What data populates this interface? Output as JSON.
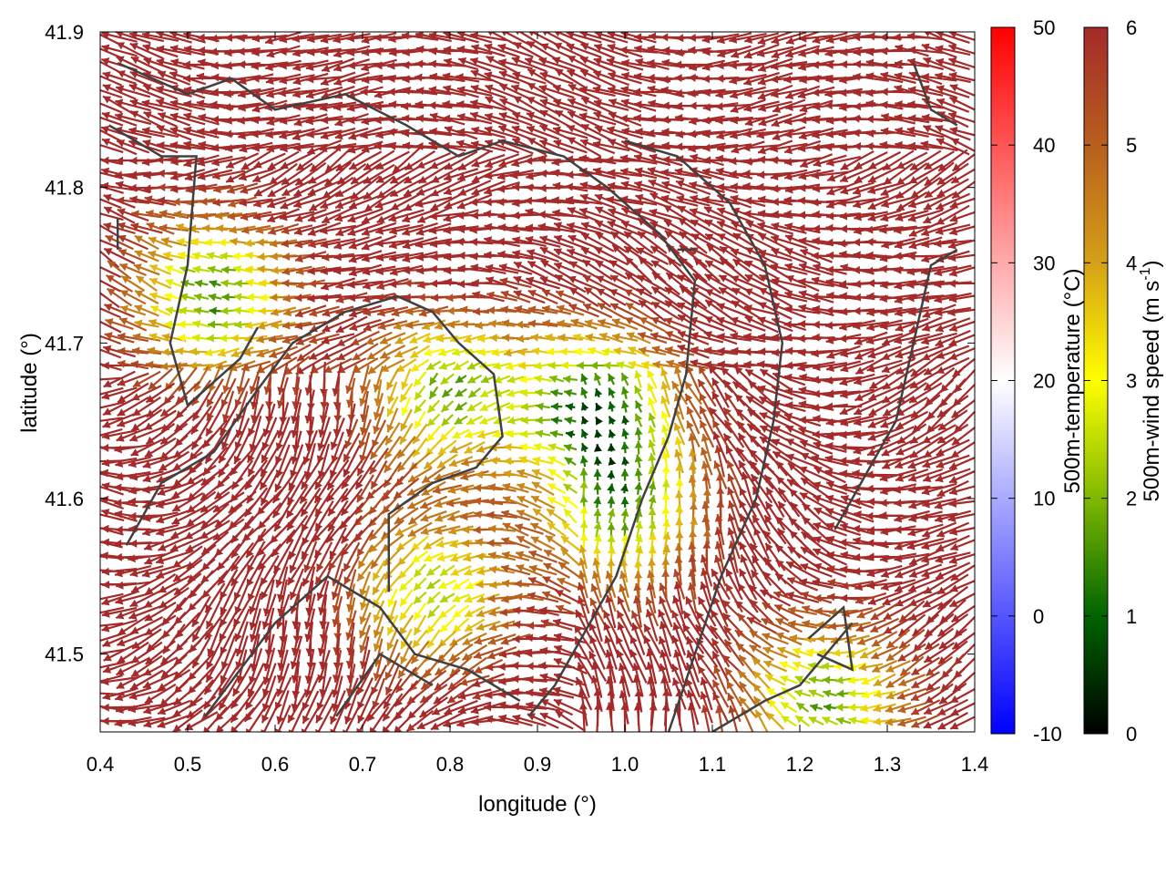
{
  "chart_data": {
    "type": "vector-field",
    "xlabel": "longitude (°)",
    "ylabel": "latitude (°)",
    "xlim": [
      0.4,
      1.4
    ],
    "ylim": [
      41.45,
      41.9
    ],
    "xticks": [
      "0.4",
      "0.5",
      "0.6",
      "0.7",
      "0.8",
      "0.9",
      "1.0",
      "1.1",
      "1.2",
      "1.3",
      "1.4"
    ],
    "yticks": [
      "41.5",
      "41.6",
      "41.7",
      "41.8",
      "41.9"
    ],
    "temperature_colorbar": {
      "label": "500m-temperature (°C)",
      "range": [
        -10,
        50
      ],
      "ticks": [
        "-10",
        "0",
        "10",
        "20",
        "30",
        "40",
        "50"
      ],
      "colors": [
        "#0000ff",
        "#ffffff",
        "#ff0000"
      ]
    },
    "wind_colorbar": {
      "label_main": "500m-wind speed (m s",
      "label_sup": "-1",
      "label_end": ")",
      "range": [
        0,
        6
      ],
      "ticks": [
        "0",
        "1",
        "2",
        "3",
        "4",
        "5",
        "6"
      ],
      "colors": [
        "#000000",
        "#006400",
        "#7fb800",
        "#ffff00",
        "#d4a017",
        "#b85f1e",
        "#a52a2a"
      ]
    },
    "vector_color_high": "#a52a2a",
    "coastline_color": "#404040",
    "low_wind_zones": [
      {
        "lon": 0.53,
        "lat": 41.73,
        "speed": 1.5
      },
      {
        "lon": 0.8,
        "lat": 41.67,
        "speed": 2.0
      },
      {
        "lon": 0.97,
        "lat": 41.66,
        "speed": 1.2
      },
      {
        "lon": 0.78,
        "lat": 41.54,
        "speed": 2.5
      },
      {
        "lon": 1.23,
        "lat": 41.47,
        "speed": 1.8
      },
      {
        "lon": 1.0,
        "lat": 41.59,
        "speed": 2.2
      }
    ],
    "coastlines": [
      [
        [
          0.42,
          41.88
        ],
        [
          0.5,
          41.86
        ],
        [
          0.55,
          41.87
        ],
        [
          0.6,
          41.85
        ],
        [
          0.68,
          41.86
        ],
        [
          0.75,
          41.84
        ],
        [
          0.81,
          41.82
        ],
        [
          0.86,
          41.83
        ],
        [
          0.93,
          41.82
        ],
        [
          0.98,
          41.8
        ]
      ],
      [
        [
          0.41,
          41.84
        ],
        [
          0.47,
          41.82
        ],
        [
          0.51,
          41.82
        ],
        [
          0.5,
          41.75
        ],
        [
          0.48,
          41.7
        ],
        [
          0.5,
          41.66
        ],
        [
          0.56,
          41.69
        ],
        [
          0.58,
          41.71
        ]
      ],
      [
        [
          0.43,
          41.57
        ],
        [
          0.47,
          41.61
        ],
        [
          0.53,
          41.63
        ],
        [
          0.58,
          41.67
        ],
        [
          0.62,
          41.7
        ],
        [
          0.68,
          41.72
        ],
        [
          0.74,
          41.73
        ],
        [
          0.78,
          41.72
        ],
        [
          0.81,
          41.7
        ],
        [
          0.85,
          41.68
        ],
        [
          0.86,
          41.64
        ],
        [
          0.83,
          41.62
        ],
        [
          0.78,
          41.61
        ],
        [
          0.73,
          41.59
        ],
        [
          0.73,
          41.54
        ]
      ],
      [
        [
          0.98,
          41.8
        ],
        [
          1.04,
          41.77
        ],
        [
          1.08,
          41.74
        ],
        [
          1.07,
          41.68
        ],
        [
          1.05,
          41.64
        ],
        [
          1.02,
          41.6
        ],
        [
          0.99,
          41.55
        ],
        [
          0.95,
          41.51
        ],
        [
          0.92,
          41.48
        ],
        [
          0.89,
          41.46
        ]
      ],
      [
        [
          0.52,
          41.46
        ],
        [
          0.56,
          41.49
        ],
        [
          0.6,
          41.52
        ],
        [
          0.66,
          41.55
        ],
        [
          0.72,
          41.53
        ],
        [
          0.76,
          41.5
        ],
        [
          0.82,
          41.49
        ],
        [
          0.88,
          41.47
        ]
      ],
      [
        [
          0.67,
          41.46
        ],
        [
          0.72,
          41.5
        ],
        [
          0.78,
          41.48
        ]
      ],
      [
        [
          1.05,
          41.45
        ],
        [
          1.08,
          41.5
        ],
        [
          1.11,
          41.55
        ],
        [
          1.15,
          41.6
        ],
        [
          1.17,
          41.65
        ],
        [
          1.18,
          41.7
        ],
        [
          1.16,
          41.75
        ],
        [
          1.12,
          41.79
        ],
        [
          1.06,
          41.82
        ],
        [
          1.0,
          41.83
        ]
      ],
      [
        [
          1.1,
          41.45
        ],
        [
          1.16,
          41.47
        ],
        [
          1.2,
          41.48
        ],
        [
          1.26,
          41.52
        ]
      ],
      [
        [
          1.21,
          41.51
        ],
        [
          1.25,
          41.53
        ],
        [
          1.26,
          41.49
        ],
        [
          1.22,
          41.5
        ]
      ],
      [
        [
          1.24,
          41.58
        ],
        [
          1.28,
          41.62
        ],
        [
          1.31,
          41.65
        ],
        [
          1.33,
          41.7
        ],
        [
          1.35,
          41.75
        ],
        [
          1.38,
          41.76
        ]
      ],
      [
        [
          1.33,
          41.88
        ],
        [
          1.35,
          41.85
        ],
        [
          1.38,
          41.84
        ]
      ],
      [
        [
          0.42,
          41.78
        ],
        [
          0.42,
          41.76
        ]
      ],
      [
        [
          1.06,
          41.76
        ],
        [
          1.08,
          41.76
        ]
      ]
    ]
  }
}
